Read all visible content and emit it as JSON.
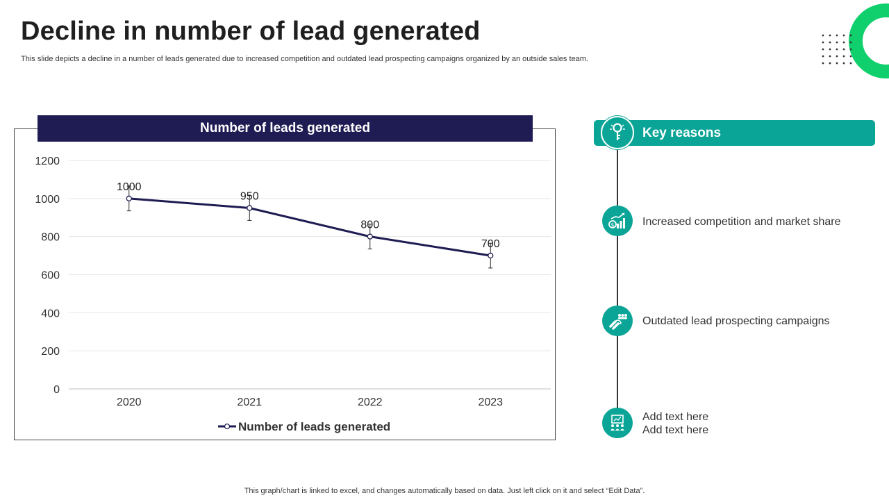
{
  "slide": {
    "title": "Decline in number of lead generated",
    "subtitle": "This slide depicts a decline in a number of leads generated due to increased competition and outdated lead prospecting campaigns organized by an outside sales team.",
    "footer": "This graph/chart is linked to excel,  and changes automatically based on data. Just left click on it and select “Edit Data”."
  },
  "chart_data": {
    "type": "line",
    "title": "Number of leads generated",
    "categories": [
      "2020",
      "2021",
      "2022",
      "2023"
    ],
    "series": [
      {
        "name": "Number of leads generated",
        "values": [
          1000,
          950,
          800,
          700
        ],
        "error": [
          65,
          65,
          65,
          65
        ]
      }
    ],
    "ylim": [
      0,
      1200
    ],
    "yticks": [
      0,
      200,
      400,
      600,
      800,
      1000,
      1200
    ],
    "xlabel": "",
    "ylabel": "",
    "grid": true,
    "legend": "bottom",
    "line_color": "#1e1c52"
  },
  "key_reasons": {
    "header": "Key reasons",
    "header_icon": "key-icon",
    "items": [
      {
        "icon": "money-growth-chart-icon",
        "lines": [
          "Increased competition and market share"
        ]
      },
      {
        "icon": "magnet-people-icon",
        "lines": [
          "Outdated lead prospecting campaigns"
        ]
      },
      {
        "icon": "presentation-audience-icon",
        "lines": [
          "Add text here",
          "Add text here"
        ]
      }
    ]
  },
  "colors": {
    "accent": "#0aa596",
    "navy": "#1e1c52",
    "green_ring": "#0fd06d"
  }
}
